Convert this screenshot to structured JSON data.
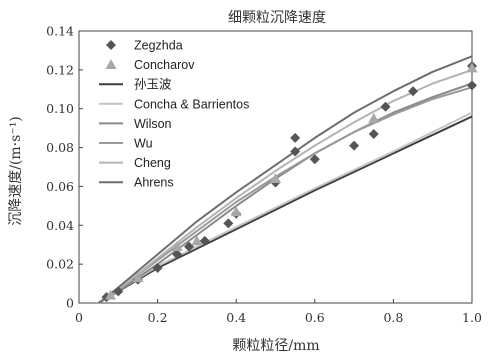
{
  "chart_data": {
    "type": "scatter",
    "title": "细颗粒沉降速度",
    "xlabel": "颗粒粒径/mm",
    "ylabel": "沉降速度/(m·s⁻¹)",
    "xlim": [
      0,
      1.0
    ],
    "ylim": [
      0,
      0.14
    ],
    "xticks": [
      "0",
      "0.2",
      "0.4",
      "0.6",
      "0.8",
      "1.0"
    ],
    "yticks": [
      "0",
      "0.02",
      "0.04",
      "0.06",
      "0.08",
      "0.10",
      "0.12",
      "0.14"
    ],
    "legend_position": "top-left",
    "points": [
      {
        "name": "Zegzhda",
        "marker": "diamond",
        "color": "#555555",
        "x": [
          0.07,
          0.1,
          0.15,
          0.2,
          0.25,
          0.28,
          0.32,
          0.38,
          0.4,
          0.5,
          0.55,
          0.55,
          0.6,
          0.7,
          0.75,
          0.78,
          0.85,
          1.0,
          1.0
        ],
        "y": [
          0.003,
          0.006,
          0.012,
          0.018,
          0.025,
          0.029,
          0.032,
          0.041,
          0.046,
          0.062,
          0.078,
          0.085,
          0.074,
          0.081,
          0.087,
          0.101,
          0.109,
          0.112,
          0.122
        ]
      },
      {
        "name": "Concharov",
        "marker": "triangle",
        "color": "#a8a8a8",
        "x": [
          0.08,
          0.15,
          0.25,
          0.3,
          0.4,
          0.5,
          0.75,
          1.0
        ],
        "y": [
          0.004,
          0.013,
          0.029,
          0.032,
          0.047,
          0.064,
          0.095,
          0.121
        ]
      }
    ],
    "series": [
      {
        "name": "孙玉波",
        "color": "#3d3d3d",
        "x": [
          0.05,
          0.2,
          0.4,
          0.6,
          0.8,
          1.0
        ],
        "y": [
          0.0,
          0.018,
          0.038,
          0.058,
          0.077,
          0.096
        ]
      },
      {
        "name": "Concha & Barrientos",
        "color": "#c4c4c4",
        "x": [
          0.05,
          0.2,
          0.4,
          0.6,
          0.8,
          1.0
        ],
        "y": [
          0.0,
          0.019,
          0.039,
          0.059,
          0.078,
          0.098
        ]
      },
      {
        "name": "Wilson",
        "color": "#8a8a8a",
        "x": [
          0.05,
          0.1,
          0.2,
          0.3,
          0.4,
          0.5,
          0.6,
          0.7,
          0.8,
          0.9,
          1.0
        ],
        "y": [
          0.0,
          0.006,
          0.02,
          0.035,
          0.05,
          0.064,
          0.077,
          0.088,
          0.098,
          0.106,
          0.113
        ]
      },
      {
        "name": "Wu",
        "color": "#9a9a9a",
        "x": [
          0.05,
          0.1,
          0.2,
          0.3,
          0.4,
          0.5,
          0.6,
          0.7,
          0.8,
          0.9,
          1.0
        ],
        "y": [
          0.0,
          0.007,
          0.022,
          0.037,
          0.052,
          0.065,
          0.077,
          0.088,
          0.097,
          0.105,
          0.111
        ]
      },
      {
        "name": "Cheng",
        "color": "#b4b4b4",
        "x": [
          0.05,
          0.1,
          0.2,
          0.3,
          0.4,
          0.5,
          0.6,
          0.7,
          0.8,
          0.9,
          1.0
        ],
        "y": [
          0.0,
          0.007,
          0.023,
          0.039,
          0.054,
          0.068,
          0.081,
          0.093,
          0.104,
          0.113,
          0.12
        ]
      },
      {
        "name": "Ahrens",
        "color": "#6e6e6e",
        "x": [
          0.05,
          0.1,
          0.2,
          0.3,
          0.4,
          0.5,
          0.6,
          0.7,
          0.8,
          0.9,
          1.0
        ],
        "y": [
          0.0,
          0.008,
          0.025,
          0.042,
          0.057,
          0.071,
          0.085,
          0.098,
          0.109,
          0.119,
          0.127
        ]
      }
    ]
  }
}
